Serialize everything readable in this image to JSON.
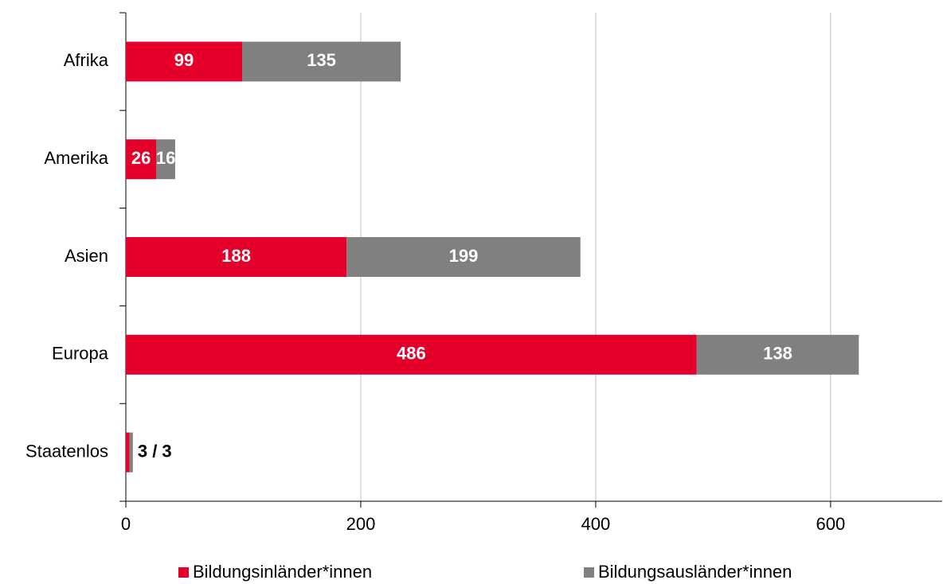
{
  "chart_data": {
    "type": "stacked-bar-horizontal",
    "categories": [
      "Afrika",
      "Amerika",
      "Asien",
      "Europa",
      "Staatenlos"
    ],
    "series": [
      {
        "name": "Bildungsinländer*innen",
        "color": "#e4002b",
        "values": [
          99,
          26,
          188,
          486,
          3
        ],
        "value_labels": [
          "99",
          "26",
          "188",
          "486",
          null
        ]
      },
      {
        "name": "Bildungsausländer*innen",
        "color": "#808080",
        "values": [
          135,
          16,
          199,
          138,
          3
        ],
        "value_labels": [
          "135",
          "16",
          "199",
          "138",
          null
        ]
      }
    ],
    "annotation": "3 / 3",
    "xlim": [
      0,
      695
    ],
    "xticks": [
      0,
      200,
      400,
      600
    ],
    "grid": true,
    "legend": "bottom"
  }
}
